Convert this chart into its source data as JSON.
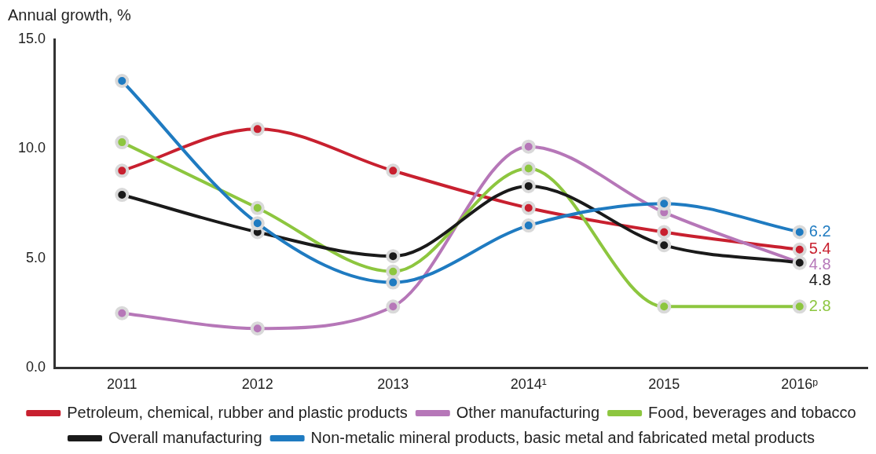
{
  "chart_data": {
    "type": "line",
    "ylabel": "Annual growth, %",
    "categories": [
      "2011",
      "2012",
      "2013",
      "2014¹",
      "2015",
      "2016ᵖ"
    ],
    "ylim": [
      0,
      15
    ],
    "yticks": [
      {
        "value": 0,
        "label": "0.0"
      },
      {
        "value": 5,
        "label": "5.0"
      },
      {
        "value": 10,
        "label": "10.0"
      },
      {
        "value": 15,
        "label": "15.0"
      }
    ],
    "grid": false,
    "legend": "bottom",
    "marker": "circle",
    "line_style": "solid",
    "series": [
      {
        "name": "Petroleum, chemical, rubber and plastic products",
        "color": "#c8202f",
        "values": [
          9.0,
          10.9,
          9.0,
          7.3,
          6.2,
          5.4
        ],
        "value_labels": [
          null,
          null,
          null,
          null,
          null,
          "5.4"
        ]
      },
      {
        "name": "Other manufacturing",
        "color": "#b677b8",
        "values": [
          2.5,
          1.8,
          2.8,
          10.1,
          7.1,
          4.8
        ],
        "value_labels": [
          null,
          null,
          null,
          null,
          null,
          "4.8"
        ]
      },
      {
        "name": "Food, beverages and tobacco",
        "color": "#8dc63f",
        "values": [
          10.3,
          7.3,
          4.4,
          9.1,
          2.8,
          2.8
        ],
        "value_labels": [
          null,
          null,
          null,
          null,
          null,
          "2.8"
        ]
      },
      {
        "name": "Overall manufacturing",
        "color": "#1a1a1a",
        "values": [
          7.9,
          6.2,
          5.1,
          8.3,
          5.6,
          4.8
        ],
        "value_labels": [
          null,
          null,
          null,
          null,
          null,
          "4.8"
        ]
      },
      {
        "name": "Non-metalic mineral products, basic metal and fabricated metal products",
        "color": "#1f7bc1",
        "values": [
          13.1,
          6.6,
          3.9,
          6.5,
          7.5,
          6.2
        ],
        "value_labels": [
          null,
          null,
          null,
          null,
          null,
          "6.2"
        ]
      }
    ]
  }
}
